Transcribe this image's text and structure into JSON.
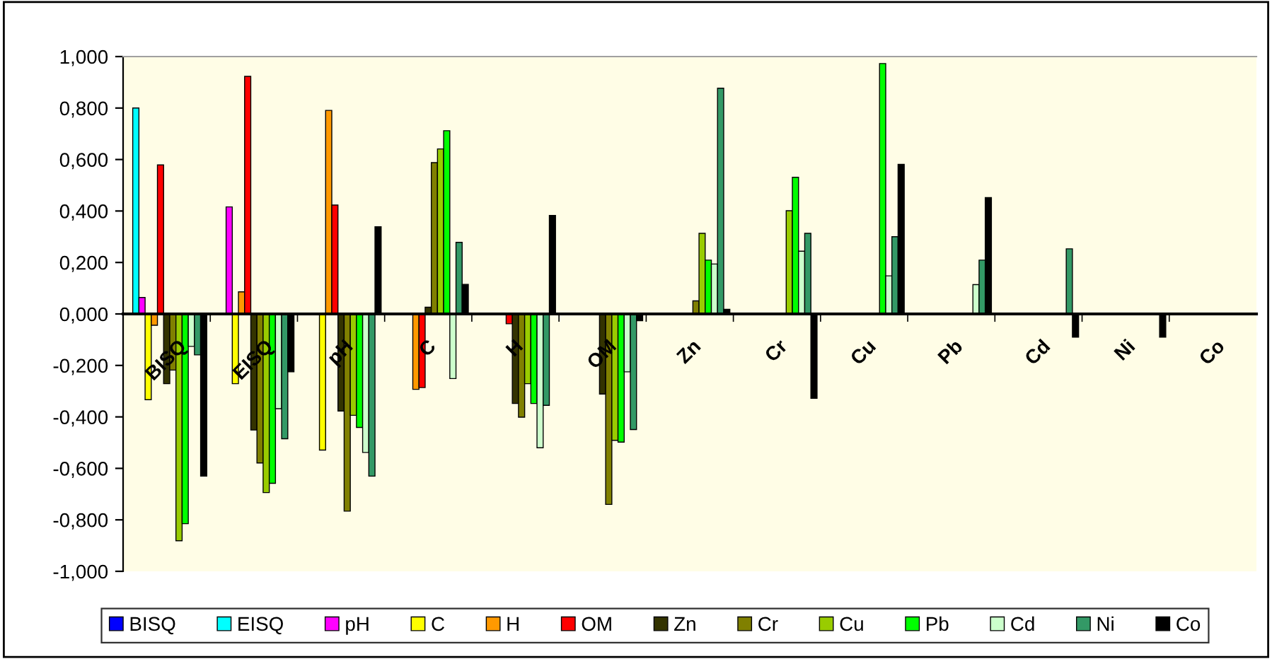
{
  "chart_data": {
    "type": "bar",
    "categories": [
      "BISQ",
      "EISQ",
      "pH",
      "C",
      "H",
      "OM",
      "Zn",
      "Cr",
      "Cu",
      "Pb",
      "Cd",
      "Ni",
      "Co"
    ],
    "series": [
      {
        "name": "BISQ",
        "color": "#0000ff",
        "values": [
          null,
          null,
          null,
          null,
          null,
          null,
          null,
          null,
          null,
          null,
          null,
          null,
          null
        ]
      },
      {
        "name": "EISQ",
        "color": "#00ffff",
        "values": [
          0.8,
          null,
          null,
          null,
          null,
          null,
          null,
          null,
          null,
          null,
          null,
          null,
          null
        ]
      },
      {
        "name": "pH",
        "color": "#ff00ff",
        "values": [
          0.064,
          0.416,
          null,
          null,
          null,
          null,
          null,
          null,
          null,
          null,
          null,
          null,
          null
        ]
      },
      {
        "name": "C",
        "color": "#ffff00",
        "values": [
          -0.333,
          -0.271,
          -0.529,
          null,
          null,
          null,
          null,
          null,
          null,
          null,
          null,
          null,
          null
        ]
      },
      {
        "name": "H",
        "color": "#ff9900",
        "values": [
          -0.044,
          0.086,
          0.791,
          -0.293,
          null,
          null,
          null,
          null,
          null,
          null,
          null,
          null,
          null
        ]
      },
      {
        "name": "OM",
        "color": "#ff0000",
        "values": [
          0.579,
          0.923,
          0.423,
          -0.286,
          -0.038,
          null,
          null,
          null,
          null,
          null,
          null,
          null,
          null
        ]
      },
      {
        "name": "Zn",
        "color": "#333300",
        "values": [
          -0.271,
          -0.451,
          -0.377,
          0.026,
          -0.348,
          -0.311,
          null,
          null,
          null,
          null,
          null,
          null,
          null
        ]
      },
      {
        "name": "Cr",
        "color": "#808000",
        "values": [
          -0.218,
          -0.579,
          -0.766,
          0.588,
          -0.401,
          -0.74,
          0.051,
          null,
          null,
          null,
          null,
          null,
          null
        ]
      },
      {
        "name": "Cu",
        "color": "#99cc00",
        "values": [
          -0.881,
          -0.694,
          -0.394,
          0.641,
          -0.271,
          -0.491,
          0.313,
          0.401,
          null,
          null,
          null,
          null,
          null
        ]
      },
      {
        "name": "Pb",
        "color": "#00ff00",
        "values": [
          -0.815,
          -0.658,
          -0.441,
          0.712,
          -0.348,
          -0.498,
          0.209,
          0.531,
          0.973,
          null,
          null,
          null,
          null
        ]
      },
      {
        "name": "Cd",
        "color": "#ccffcc",
        "values": [
          -0.126,
          -0.368,
          -0.538,
          -0.251,
          -0.52,
          -0.225,
          0.194,
          0.244,
          0.148,
          0.114,
          null,
          null,
          null
        ]
      },
      {
        "name": "Ni",
        "color": "#339966",
        "values": [
          -0.159,
          -0.485,
          -0.63,
          0.278,
          -0.355,
          -0.449,
          0.877,
          0.313,
          0.3,
          0.209,
          0.253,
          null,
          null
        ]
      },
      {
        "name": "Co",
        "color": "#000000",
        "values": [
          -0.63,
          -0.225,
          0.339,
          0.115,
          0.383,
          -0.026,
          0.018,
          -0.328,
          0.581,
          0.452,
          -0.09,
          -0.09,
          null
        ]
      }
    ],
    "ylim": [
      -1.0,
      1.0
    ],
    "yticks": [
      {
        "value": -1.0,
        "label": "-1,000"
      },
      {
        "value": -0.8,
        "label": "-0,800"
      },
      {
        "value": -0.6,
        "label": "-0,600"
      },
      {
        "value": -0.4,
        "label": "-0,400"
      },
      {
        "value": -0.2,
        "label": "-0,200"
      },
      {
        "value": 0.0,
        "label": "0,000"
      },
      {
        "value": 0.2,
        "label": "0,200"
      },
      {
        "value": 0.4,
        "label": "0,400"
      },
      {
        "value": 0.6,
        "label": "0,600"
      },
      {
        "value": 0.8,
        "label": "0,800"
      },
      {
        "value": 1.0,
        "label": "1,000"
      }
    ],
    "legend": "bottom"
  }
}
